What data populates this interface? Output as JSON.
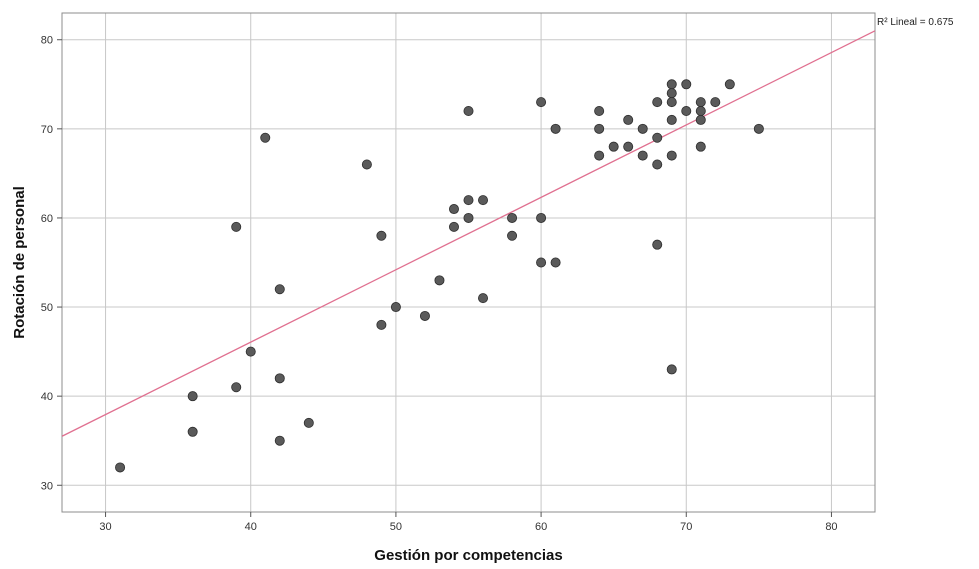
{
  "chart_data": {
    "type": "scatter",
    "xlabel": "Gestión por competencias",
    "ylabel": "Rotación de personal",
    "xlim": [
      27,
      83
    ],
    "ylim": [
      27,
      83
    ],
    "xticks": [
      30,
      40,
      50,
      60,
      70,
      80
    ],
    "yticks": [
      30,
      40,
      50,
      60,
      70,
      80
    ],
    "grid": true,
    "point_color": "#5a5a5a",
    "fit_line": {
      "label": "R² Lineal = 0.675",
      "color": "#e07090",
      "start": [
        27,
        35.5
      ],
      "end": [
        83,
        81
      ]
    },
    "points": [
      [
        31,
        32
      ],
      [
        36,
        40
      ],
      [
        36,
        36
      ],
      [
        39,
        59
      ],
      [
        39,
        41
      ],
      [
        40,
        45
      ],
      [
        41,
        69
      ],
      [
        42,
        52
      ],
      [
        42,
        42
      ],
      [
        42,
        35
      ],
      [
        44,
        37
      ],
      [
        48,
        66
      ],
      [
        49,
        58
      ],
      [
        49,
        48
      ],
      [
        50,
        50
      ],
      [
        52,
        49
      ],
      [
        53,
        53
      ],
      [
        54,
        61
      ],
      [
        54,
        59
      ],
      [
        55,
        72
      ],
      [
        55,
        62
      ],
      [
        55,
        60
      ],
      [
        56,
        62
      ],
      [
        56,
        51
      ],
      [
        58,
        60
      ],
      [
        58,
        58
      ],
      [
        60,
        73
      ],
      [
        60,
        60
      ],
      [
        60,
        55
      ],
      [
        61,
        70
      ],
      [
        61,
        55
      ],
      [
        64,
        72
      ],
      [
        64,
        70
      ],
      [
        64,
        67
      ],
      [
        65,
        68
      ],
      [
        66,
        71
      ],
      [
        66,
        68
      ],
      [
        67,
        70
      ],
      [
        67,
        67
      ],
      [
        68,
        73
      ],
      [
        68,
        69
      ],
      [
        68,
        66
      ],
      [
        68,
        57
      ],
      [
        69,
        75
      ],
      [
        69,
        74
      ],
      [
        69,
        73
      ],
      [
        69,
        71
      ],
      [
        69,
        67
      ],
      [
        69,
        43
      ],
      [
        70,
        75
      ],
      [
        70,
        72
      ],
      [
        71,
        73
      ],
      [
        71,
        72
      ],
      [
        71,
        71
      ],
      [
        71,
        68
      ],
      [
        72,
        73
      ],
      [
        73,
        75
      ],
      [
        75,
        70
      ]
    ]
  }
}
